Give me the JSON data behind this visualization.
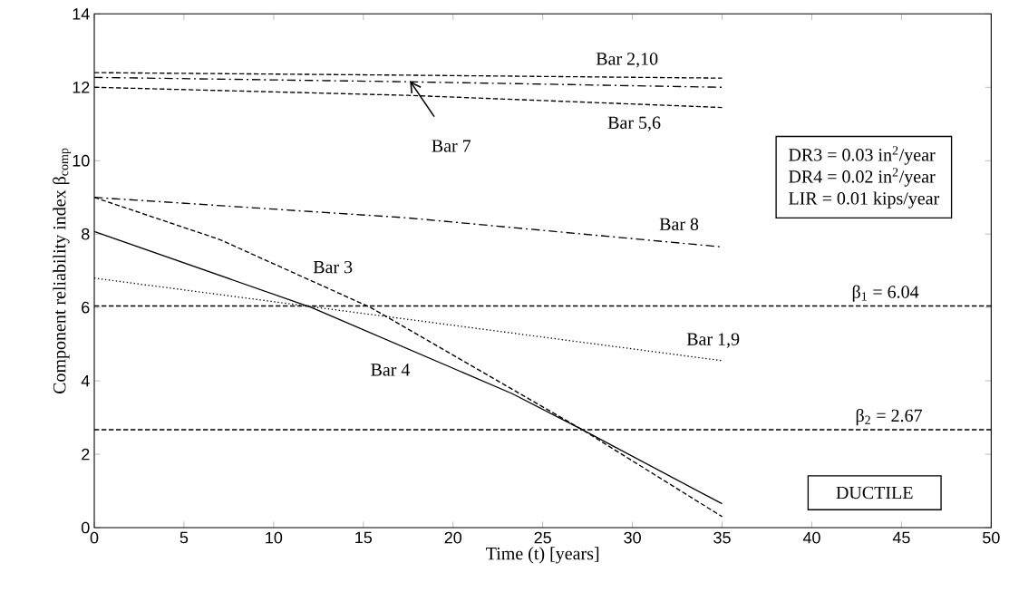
{
  "chart_data": {
    "type": "line",
    "xlabel": "Time (t) [years]",
    "ylabel": "Component reliability index β$_{comp}$",
    "xlim": [
      0,
      50
    ],
    "ylim": [
      0,
      14
    ],
    "xticks": [
      0,
      5,
      10,
      15,
      20,
      25,
      30,
      35,
      40,
      45,
      50
    ],
    "yticks": [
      0,
      2,
      4,
      6,
      8,
      10,
      12,
      14
    ],
    "grid": false,
    "marker": "none",
    "series": [
      {
        "name": "Bar 2,10",
        "color": "#000000",
        "line_style": "dashed",
        "x": [
          0,
          17.5,
          35
        ],
        "values": [
          12.4,
          12.33,
          12.25
        ]
      },
      {
        "name": "Bar 7",
        "color": "#000000",
        "line_style": "dashdot",
        "x": [
          0,
          17.5,
          35
        ],
        "values": [
          12.27,
          12.15,
          12.0
        ]
      },
      {
        "name": "Bar 5,6",
        "color": "#000000",
        "line_style": "dashed",
        "x": [
          0,
          17.5,
          35
        ],
        "values": [
          12.0,
          11.78,
          11.45
        ]
      },
      {
        "name": "Bar 8",
        "color": "#000000",
        "line_style": "dashdot",
        "x": [
          0,
          17.5,
          35
        ],
        "values": [
          9.0,
          8.44,
          7.65
        ]
      },
      {
        "name": "Bar 3",
        "color": "#000000",
        "line_style": "dashed",
        "x": [
          0,
          7,
          15.4,
          27.2,
          35
        ],
        "values": [
          9.0,
          7.85,
          6.0,
          2.67,
          0.3
        ]
      },
      {
        "name": "Bar 4",
        "color": "#000000",
        "line_style": "solid",
        "x": [
          0,
          12.1,
          23.3,
          27.2,
          35
        ],
        "values": [
          8.07,
          6.0,
          3.65,
          2.67,
          0.65
        ]
      },
      {
        "name": "Bar 1,9",
        "color": "#000000",
        "line_style": "dotted",
        "x": [
          0,
          35
        ],
        "values": [
          6.8,
          4.55
        ]
      }
    ],
    "ref_lines": [
      {
        "axis": "y",
        "value": 6.04,
        "label": "β$_{1}$ = 6.04",
        "color": "#000000",
        "line_style": "dashed"
      },
      {
        "axis": "y",
        "value": 2.67,
        "label": "β$_{2}$ = 2.67",
        "color": "#000000",
        "line_style": "dashed"
      }
    ],
    "annotations": [
      "DR3 = 0.03 in$^{2}$/year",
      "DR4 = 0.02 in$^{2}$/year",
      "LIR = 0.01 kips/year",
      "DUCTILE"
    ]
  }
}
